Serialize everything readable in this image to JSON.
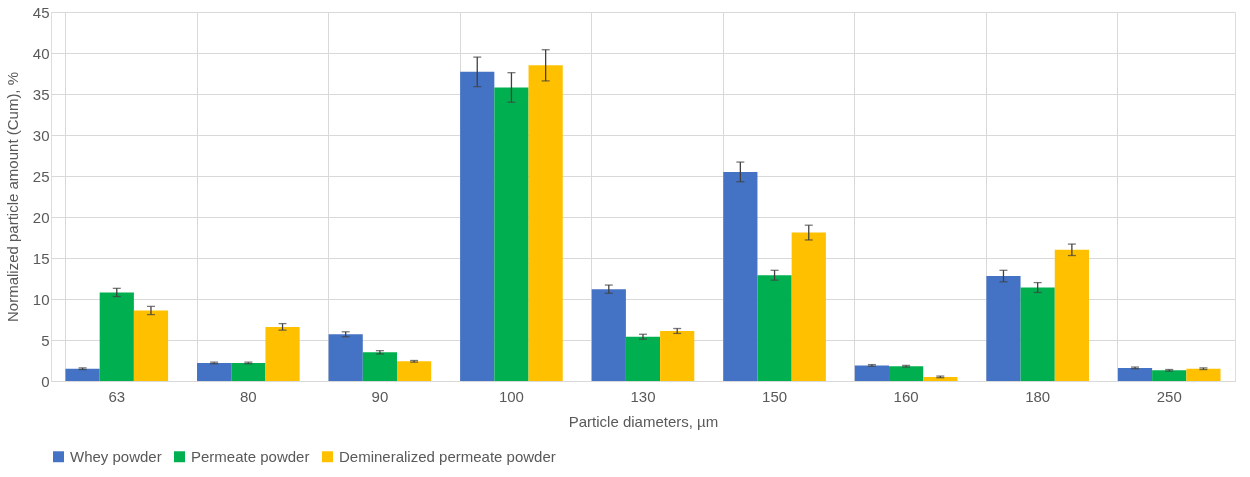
{
  "chart_data": {
    "type": "bar",
    "xlabel": "Particle diameters, µm",
    "ylabel": "Normalized particle amount (Cum), %",
    "categories": [
      "63",
      "80",
      "90",
      "100",
      "130",
      "150",
      "160",
      "180",
      "250"
    ],
    "series": [
      {
        "name": "Whey powder",
        "color": "#4472c4",
        "values": [
          1.5,
          2.2,
          5.7,
          37.7,
          11.2,
          25.5,
          1.9,
          12.8,
          1.6
        ],
        "errors": [
          0.1,
          0.1,
          0.3,
          1.8,
          0.5,
          1.2,
          0.1,
          0.7,
          0.1
        ]
      },
      {
        "name": "Permeate powder",
        "color": "#00b050",
        "values": [
          10.8,
          2.2,
          3.5,
          35.8,
          5.4,
          12.9,
          1.8,
          11.4,
          1.3
        ],
        "errors": [
          0.5,
          0.1,
          0.2,
          1.8,
          0.3,
          0.6,
          0.1,
          0.6,
          0.1
        ]
      },
      {
        "name": "Demineralized permeate powder",
        "color": "#ffc000",
        "values": [
          8.6,
          6.6,
          2.4,
          38.5,
          6.1,
          18.1,
          0.5,
          16.0,
          1.5
        ],
        "errors": [
          0.5,
          0.4,
          0.1,
          1.9,
          0.3,
          0.9,
          0.1,
          0.7,
          0.1
        ]
      }
    ],
    "ylim": [
      0,
      45
    ],
    "yticks": [
      0,
      5,
      10,
      15,
      20,
      25,
      30,
      35,
      40,
      45
    ],
    "grid": true,
    "legend": "bottom"
  }
}
